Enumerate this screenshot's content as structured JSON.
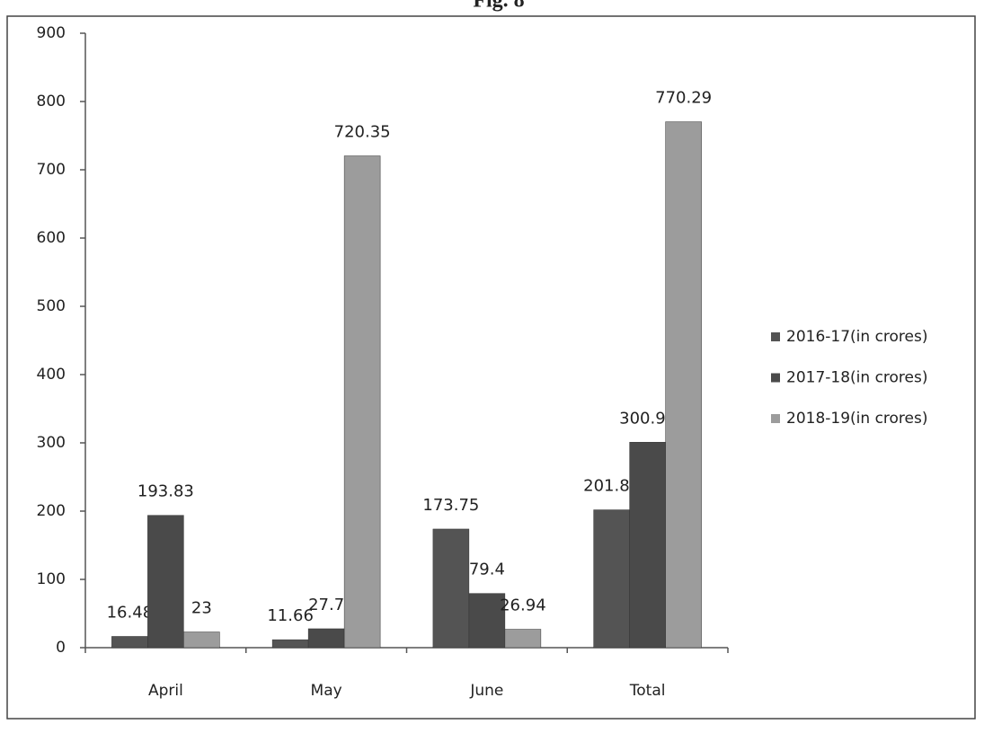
{
  "chart_data": {
    "type": "bar",
    "title": "Fig. 8",
    "categories": [
      "April",
      "May",
      "June",
      "Total"
    ],
    "series": [
      {
        "name": "2016-17(in crores)",
        "color": "#545454",
        "values": [
          16.48,
          11.66,
          173.75,
          201.89
        ]
      },
      {
        "name": "2017-18(in crores)",
        "color": "#4a4a4a",
        "values": [
          193.83,
          27.7,
          79.4,
          300.93
        ]
      },
      {
        "name": "2018-19(in crores)",
        "color": "#9c9c9c",
        "values": [
          23,
          720.35,
          26.94,
          770.29
        ]
      }
    ],
    "ylim": [
      0,
      900
    ],
    "yticks": [
      0,
      100,
      200,
      300,
      400,
      500,
      600,
      700,
      800,
      900
    ],
    "grid": false,
    "legend": "right"
  }
}
